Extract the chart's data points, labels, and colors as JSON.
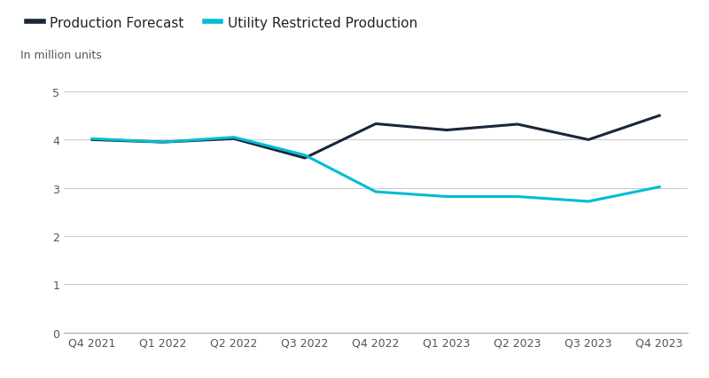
{
  "x_labels": [
    "Q4 2021",
    "Q1 2022",
    "Q2 2022",
    "Q3 2022",
    "Q4 2022",
    "Q1 2023",
    "Q2 2023",
    "Q3 2023",
    "Q4 2023"
  ],
  "production_forecast": [
    4.0,
    3.95,
    4.02,
    3.62,
    4.33,
    4.2,
    4.32,
    4.0,
    4.5
  ],
  "utility_restricted": [
    4.02,
    3.95,
    4.05,
    3.68,
    2.92,
    2.82,
    2.82,
    2.72,
    3.02
  ],
  "forecast_color": "#1a2639",
  "utility_color": "#00bcd4",
  "legend_labels": [
    "Production Forecast",
    "Utility Restricted Production"
  ],
  "ylabel": "In million units",
  "ylim": [
    0,
    5.5
  ],
  "yticks": [
    0,
    1,
    2,
    3,
    4,
    5
  ],
  "line_width": 2.2,
  "background_color": "#ffffff",
  "grid_color": "#cccccc",
  "title_fontsize": 11,
  "label_fontsize": 9,
  "tick_fontsize": 9
}
